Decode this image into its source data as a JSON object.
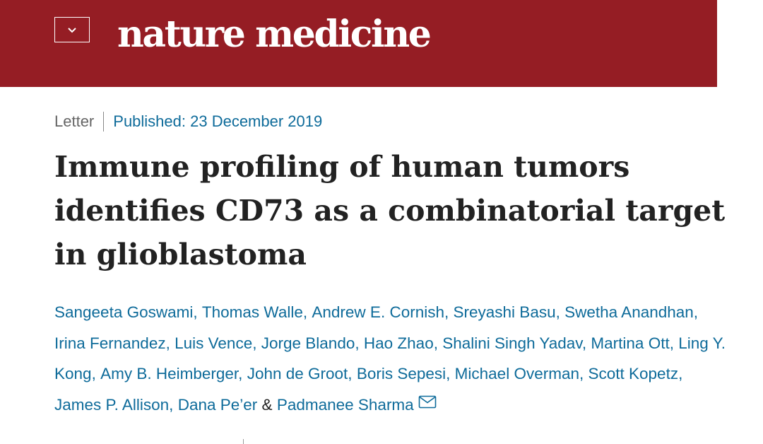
{
  "header": {
    "logo_text": "nature medicine",
    "menu_icon": "chevron-down-icon",
    "background_color": "#951d24"
  },
  "article": {
    "type": "Letter",
    "published": "Published: 23 December 2019",
    "title": "Immune profiling of human tumors identifies CD73 as a combinatorial target in glioblastoma",
    "authors": [
      "Sangeeta Goswami",
      "Thomas Walle",
      "Andrew E. Cornish",
      "Sreyashi Basu",
      "Swetha Anandhan",
      "Irina Fernandez",
      "Luis Vence",
      "Jorge Blando",
      "Hao Zhao",
      "Shalini Singh Yadav",
      "Martina Ott",
      "Ling Y. Kong",
      "Amy B. Heimberger",
      "John de Groot",
      "Boris Sepesi",
      "Michael Overman",
      "Scott Kopetz",
      "James P. Allison",
      "Dana Pe’er",
      "Padmanee Sharma"
    ],
    "author_separator": ",",
    "last_author_joiner": "&",
    "corresponding_icon": "mail-icon",
    "link_color": "#0e6b9a"
  }
}
